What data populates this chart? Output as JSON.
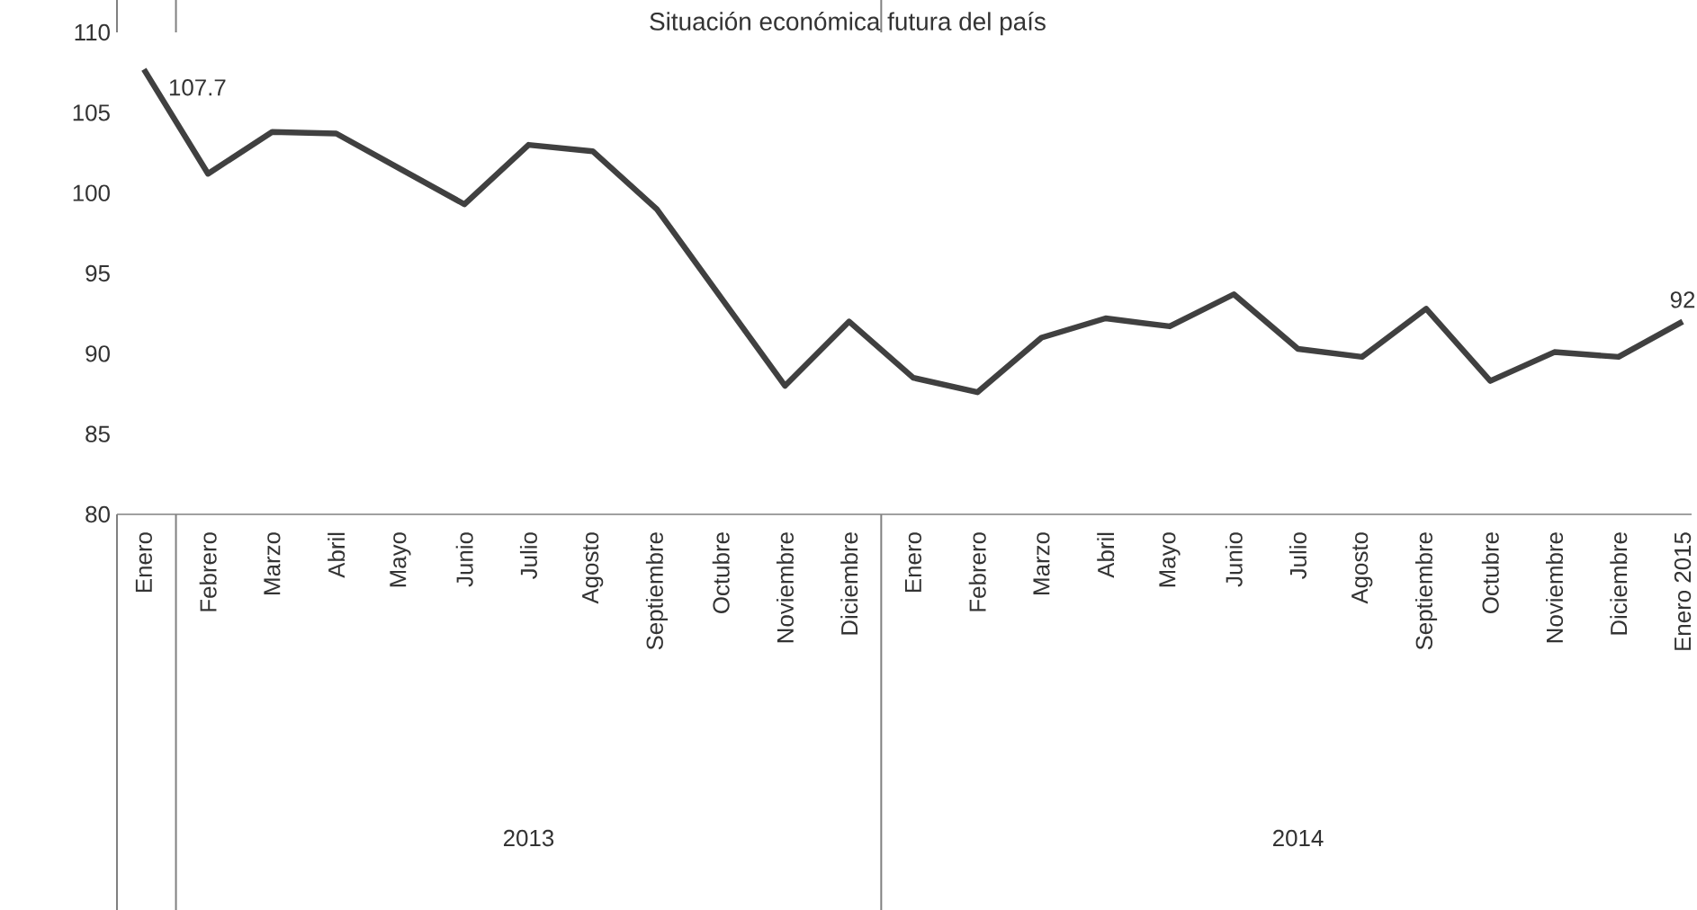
{
  "chart_data": {
    "type": "line",
    "title": "Situación económica futura del país",
    "categories": [
      "Enero",
      "Febrero",
      "Marzo",
      "Abril",
      "Mayo",
      "Junio",
      "Julio",
      "Agosto",
      "Septiembre",
      "Octubre",
      "Noviembre",
      "Diciembre",
      "Enero",
      "Febrero",
      "Marzo",
      "Abril",
      "Mayo",
      "Junio",
      "Julio",
      "Agosto",
      "Septiembre",
      "Octubre",
      "Noviembre",
      "Diciembre",
      "Enero 2015"
    ],
    "values": [
      107.7,
      101.2,
      103.8,
      103.7,
      101.5,
      99.3,
      103.0,
      102.6,
      99.0,
      93.5,
      88.0,
      92.0,
      88.5,
      87.6,
      91.0,
      92.2,
      91.7,
      93.7,
      90.3,
      89.8,
      92.8,
      88.3,
      90.1,
      89.8,
      92.0
    ],
    "value_labels": [
      "107.7",
      null,
      null,
      null,
      null,
      null,
      null,
      null,
      null,
      null,
      null,
      null,
      null,
      null,
      null,
      null,
      null,
      null,
      null,
      null,
      null,
      null,
      null,
      null,
      "92"
    ],
    "color": "#404040",
    "ylim": [
      80,
      110
    ],
    "yticks": [
      80,
      85,
      90,
      95,
      100,
      105,
      110
    ],
    "grid": false,
    "marker": "none",
    "line_style": "solid",
    "annotations": [
      "2013",
      "2014"
    ]
  }
}
